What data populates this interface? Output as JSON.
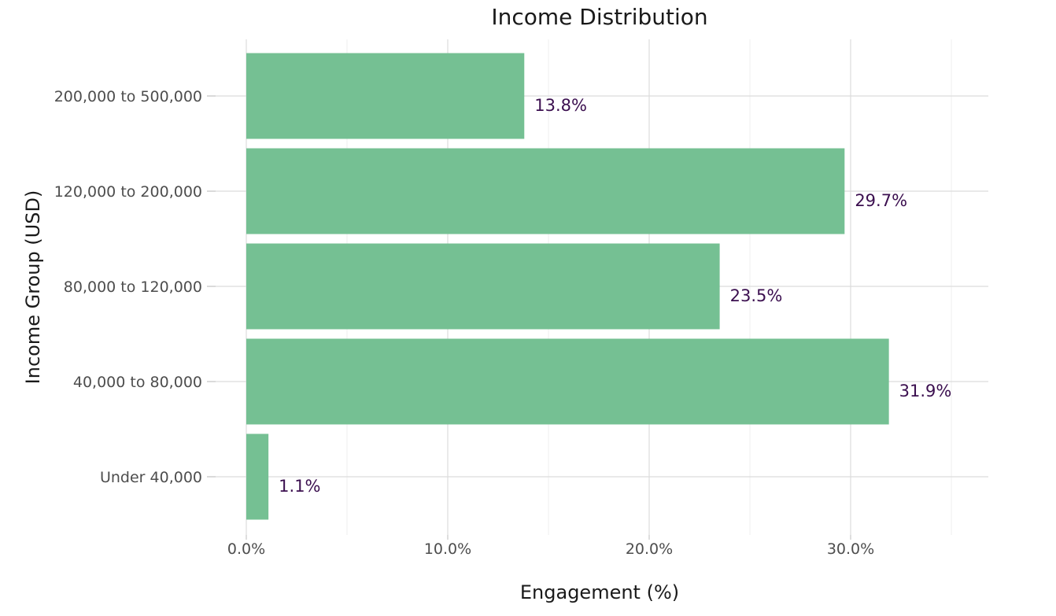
{
  "chart_data": {
    "type": "bar",
    "orientation": "horizontal",
    "title": "Income Distribution",
    "xlabel": "Engagement (%)",
    "ylabel": "Income Group (USD)",
    "categories": [
      "Under 40,000",
      "40,000 to 80,000",
      "80,000 to 120,000",
      "120,000 to 200,000",
      "200,000 to 500,000"
    ],
    "values": [
      1.1,
      31.9,
      23.5,
      29.7,
      13.8
    ],
    "data_labels": [
      "1.1%",
      "31.9%",
      "23.5%",
      "29.7%",
      "13.8%"
    ],
    "x_ticks": [
      0,
      10,
      20,
      30
    ],
    "x_tick_labels": [
      "0.0%",
      "10.0%",
      "20.0%",
      "30.0%"
    ],
    "xlim": [
      0,
      36.9
    ],
    "grid": true,
    "legend": "none",
    "bar_color": "#72bf91",
    "label_color": "#3b0f4f"
  }
}
